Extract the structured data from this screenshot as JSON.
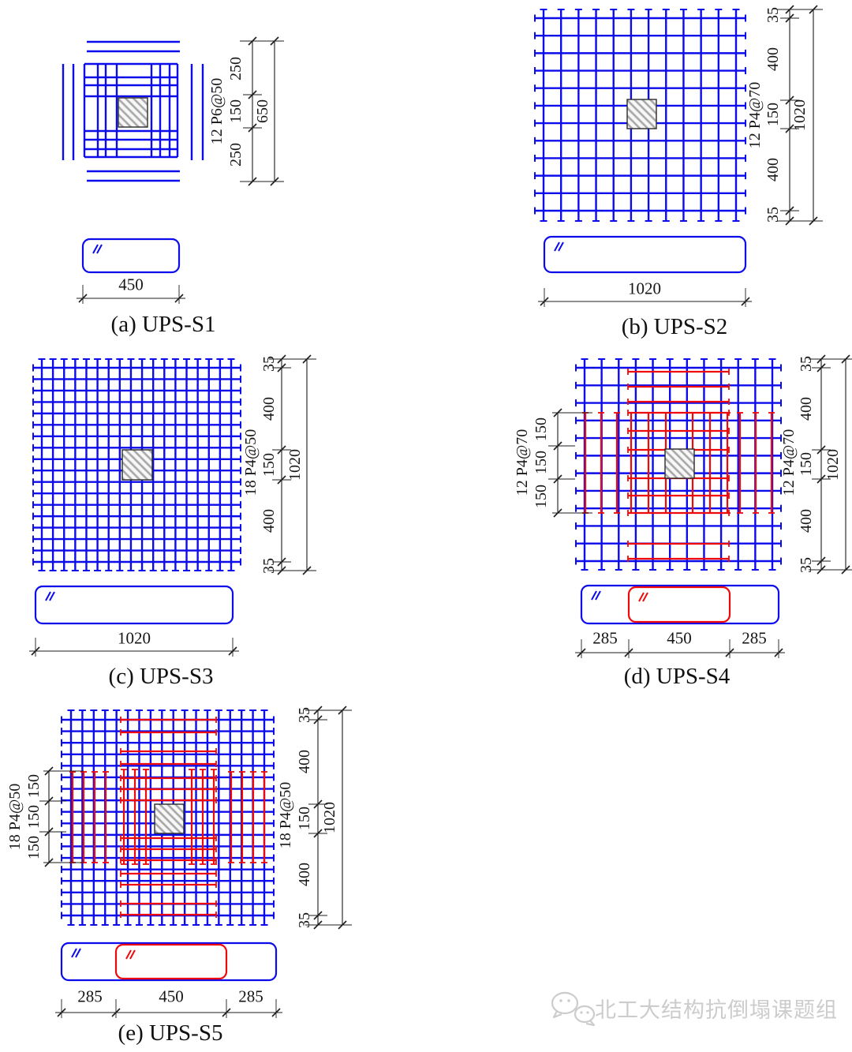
{
  "colors": {
    "blue_bar": "#0b0bec",
    "red_bar": "#ee0a0a",
    "dim_line": "#1c1c1c",
    "text": "#141414",
    "hatch": "#a8a8a8",
    "watermark": "#cccccc"
  },
  "panels": {
    "a": {
      "caption": "(a) UPS-S1",
      "bars_label": "12 P6@50",
      "segment_dims": [
        "250",
        "150",
        "250"
      ],
      "overall_dim": "650",
      "section_width_dims": [
        "450"
      ]
    },
    "b": {
      "caption": "(b) UPS-S2",
      "bars_label": "12 P4@70",
      "segment_dims": [
        "35",
        "400",
        "150",
        "400",
        "35"
      ],
      "overall_dim": "1020",
      "section_width_dims": [
        "1020"
      ]
    },
    "c": {
      "caption": "(c) UPS-S3",
      "bars_label": "18 P4@50",
      "segment_dims": [
        "35",
        "400",
        "150",
        "400",
        "35"
      ],
      "overall_dim": "1020",
      "section_width_dims": [
        "1020"
      ]
    },
    "d": {
      "caption": "(d) UPS-S4",
      "bars_label_right": "12 P4@70",
      "segment_dims_right": [
        "35",
        "400",
        "150",
        "400",
        "35"
      ],
      "overall_dim": "1020",
      "bars_label_left": "12 P4@70",
      "segment_dims_left": [
        "150",
        "150",
        "150"
      ],
      "section_width_dims": [
        "285",
        "450",
        "285"
      ]
    },
    "e": {
      "caption": "(e) UPS-S5",
      "bars_label_right": "18 P4@50",
      "segment_dims_right": [
        "35",
        "400",
        "150",
        "400",
        "35"
      ],
      "overall_dim": "1020",
      "bars_label_left": "18 P4@50",
      "segment_dims_left": [
        "150",
        "150",
        "150"
      ],
      "section_width_dims": [
        "285",
        "450",
        "285"
      ]
    }
  },
  "watermark": {
    "logo": "wechat-icon",
    "text": "北工大结构抗倒塌课题组"
  }
}
